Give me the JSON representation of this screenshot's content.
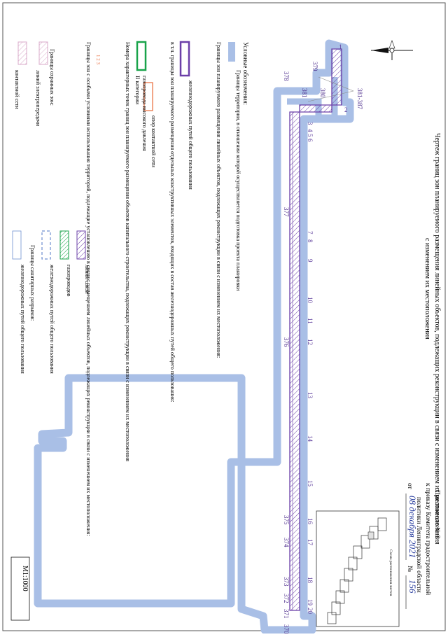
{
  "title": "Чертеж границ зон планируемого размещения линейных объектов, подлежащих реконструкции в связи с изменением их местоположения",
  "annex": {
    "line1": "Приложение № 3",
    "line2": "к приказу Комитета градостроительной",
    "line3": "политики Ленинградской области",
    "date_prefix": "от",
    "date_value": "08 декабря 2021",
    "number_prefix": "№",
    "number_value": "156"
  },
  "inset_title": "Схема расположения листов",
  "scale": "М1:1000",
  "map_labels": {
    "range_label": "381-387",
    "numbers": [
      "379",
      "380",
      "381",
      "378",
      "377",
      "376",
      "375",
      "374",
      "373",
      "372",
      "371",
      "370"
    ],
    "points": [
      "1",
      "2",
      "3",
      "4",
      "5",
      "6",
      "7",
      "8",
      "9",
      "10",
      "11",
      "12",
      "13",
      "14",
      "15",
      "16",
      "17",
      "18",
      "19",
      "20"
    ]
  },
  "legend": {
    "heading": "Условные обозначения:",
    "territory": "Границы территории, в отношении которой осуществляется подготовка проекта планировки",
    "zones_heading": "Границы зон планируемого размещения линейных объектов, подлежащих реконструкции в связи с изменением их местоположения:",
    "railway": "железнодорожных путей общего пользования",
    "incl_heading": "в т.ч. границы зон планируемого размещения отдельных конструктивных элементов, входящих в состав железнодорожных путей общего пользования:",
    "contact_support": "опор контактной сети",
    "pressure_pipeline": "газопровода высокого давления",
    "category": "II категории",
    "numbers_heading": "Номера характерных точек границ зон планируемого размещения объектов капитального строительства, подлежащих реконструкции в связи с изменением их местоположения",
    "points_sample": "1  2  3",
    "special_heading": "Границы зон с особыми условиями использования территорий, подлежащие установлению в связи с размещением линейных объектов, подлежащих реконструкции в связи с изменением их местоположения:",
    "protection_heading": "Границы охранных зон:",
    "power_lines": "линий электропередачи",
    "contact_network": "контактной сети",
    "comm_lines": "линий связи",
    "gas_pipelines": "газопроводов",
    "rail_paths": "железнодорожных путей общего пользования",
    "sanitary_heading": "Границы санитарных разрывов:",
    "rail_sanitary": "железнодорожных путей общего пользования"
  },
  "colors": {
    "territory_fill": "#a9bfe6",
    "zone_stroke": "#6b3fa8",
    "hatch": "#6b3fa8",
    "contact_support": "#e86a3a",
    "gas": "#19a34a",
    "power_hatch": "#d8a8c8"
  }
}
